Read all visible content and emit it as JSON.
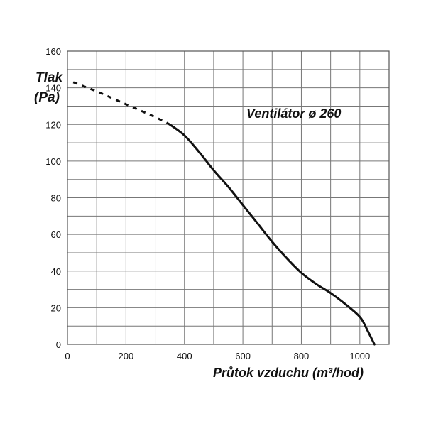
{
  "chart_data": {
    "type": "line",
    "ylabel_line1": "Tlak",
    "ylabel_line2": "(Pa)",
    "xlabel": "Průtok vzduchu (m³/hod)",
    "annotation": "Ventilátor ø 260",
    "xlim": [
      0,
      1100
    ],
    "ylim": [
      0,
      160
    ],
    "x_ticks": [
      0,
      200,
      400,
      600,
      800,
      1000
    ],
    "y_ticks": [
      0,
      20,
      40,
      60,
      80,
      100,
      120,
      140,
      160
    ],
    "grid": true,
    "series": [
      {
        "style": "dotted",
        "x": [
          20,
          100,
          200,
          300,
          350
        ],
        "y": [
          143,
          138,
          131,
          124,
          120
        ]
      },
      {
        "style": "solid",
        "x": [
          350,
          400,
          450,
          500,
          550,
          600,
          650,
          700,
          750,
          800,
          850,
          900,
          950,
          1000,
          1025,
          1050
        ],
        "y": [
          120,
          114,
          105,
          95,
          86,
          76,
          66,
          56,
          47,
          39,
          33,
          28,
          22,
          15,
          8,
          0
        ]
      }
    ]
  }
}
